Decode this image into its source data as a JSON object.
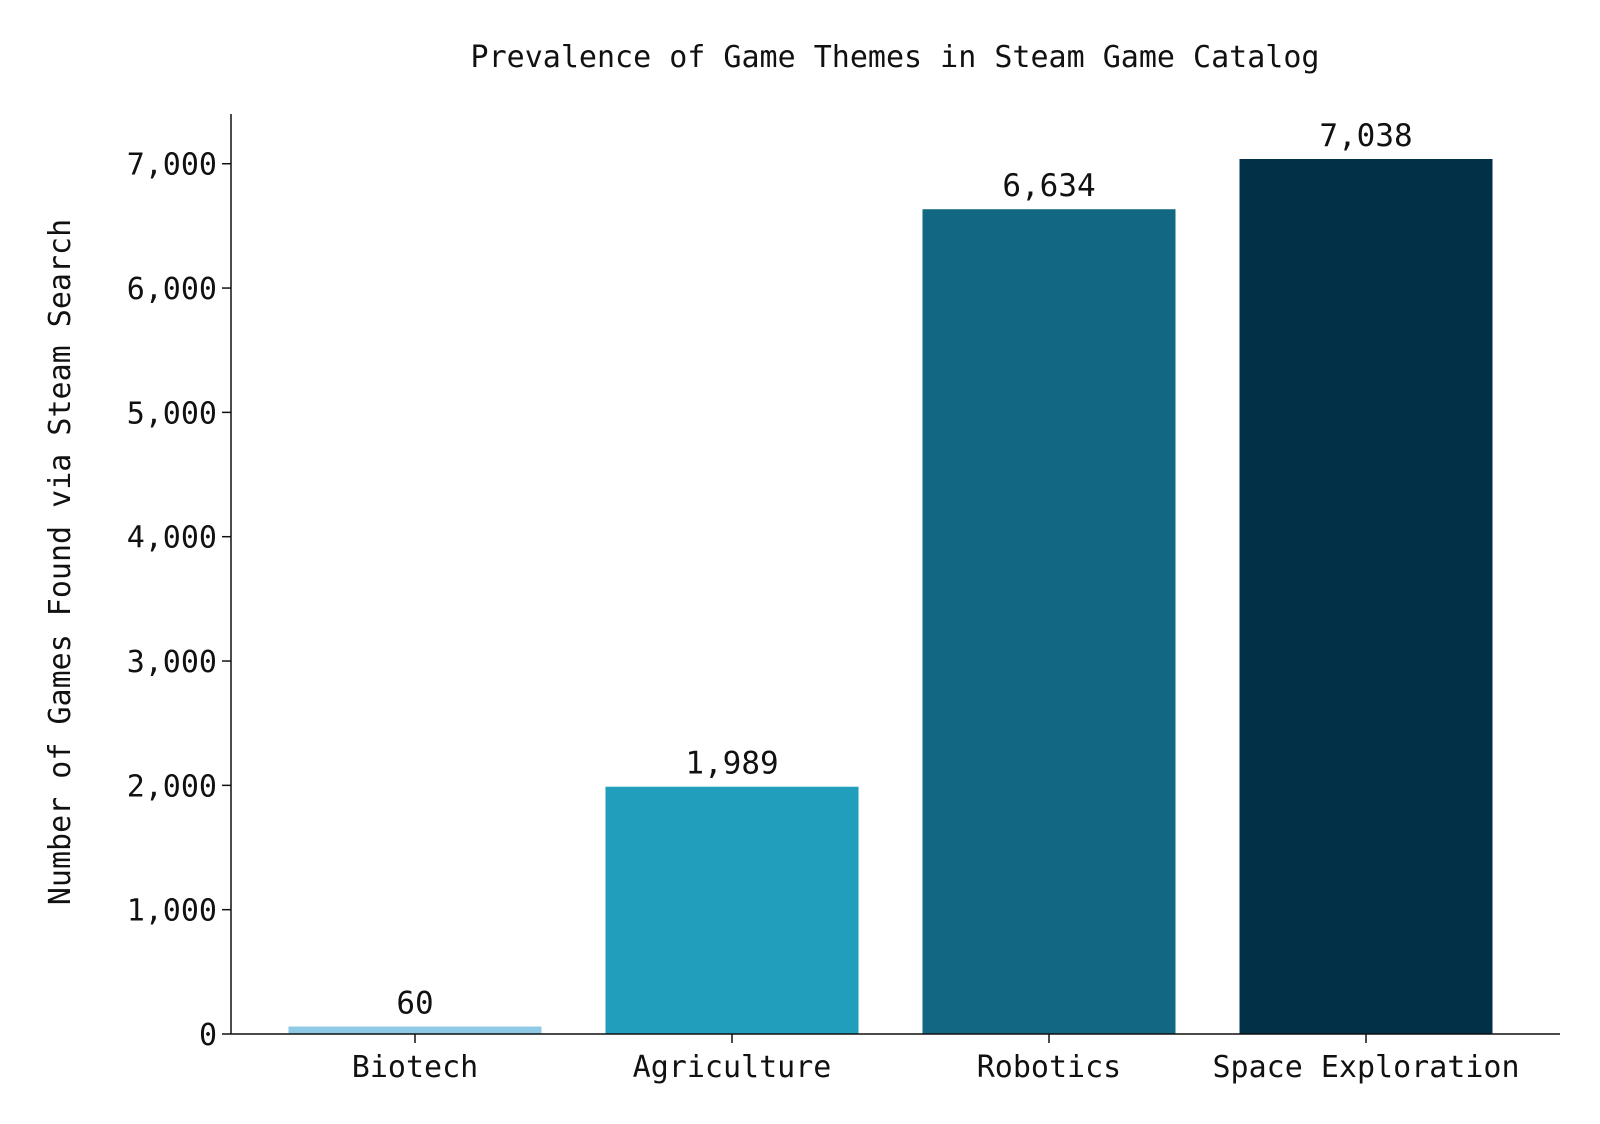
{
  "chart_data": {
    "type": "bar",
    "title": "Prevalence of Game Themes in Steam Game Catalog",
    "xlabel": "",
    "ylabel": "Number of Games Found via Steam Search",
    "categories": [
      "Biotech",
      "Agriculture",
      "Robotics",
      "Space Exploration"
    ],
    "values": [
      60,
      1989,
      6634,
      7038
    ],
    "value_labels": [
      "60",
      "1,989",
      "6,634",
      "7,038"
    ],
    "bar_colors": [
      "#8ecae6",
      "#219ebc",
      "#126782",
      "#023047"
    ],
    "ylim": [
      0,
      7400
    ],
    "yticks": [
      0,
      1000,
      2000,
      3000,
      4000,
      5000,
      6000,
      7000
    ],
    "ytick_labels": [
      "0",
      "1,000",
      "2,000",
      "3,000",
      "4,000",
      "5,000",
      "6,000",
      "7,000"
    ],
    "grid": false,
    "legend": "none"
  }
}
